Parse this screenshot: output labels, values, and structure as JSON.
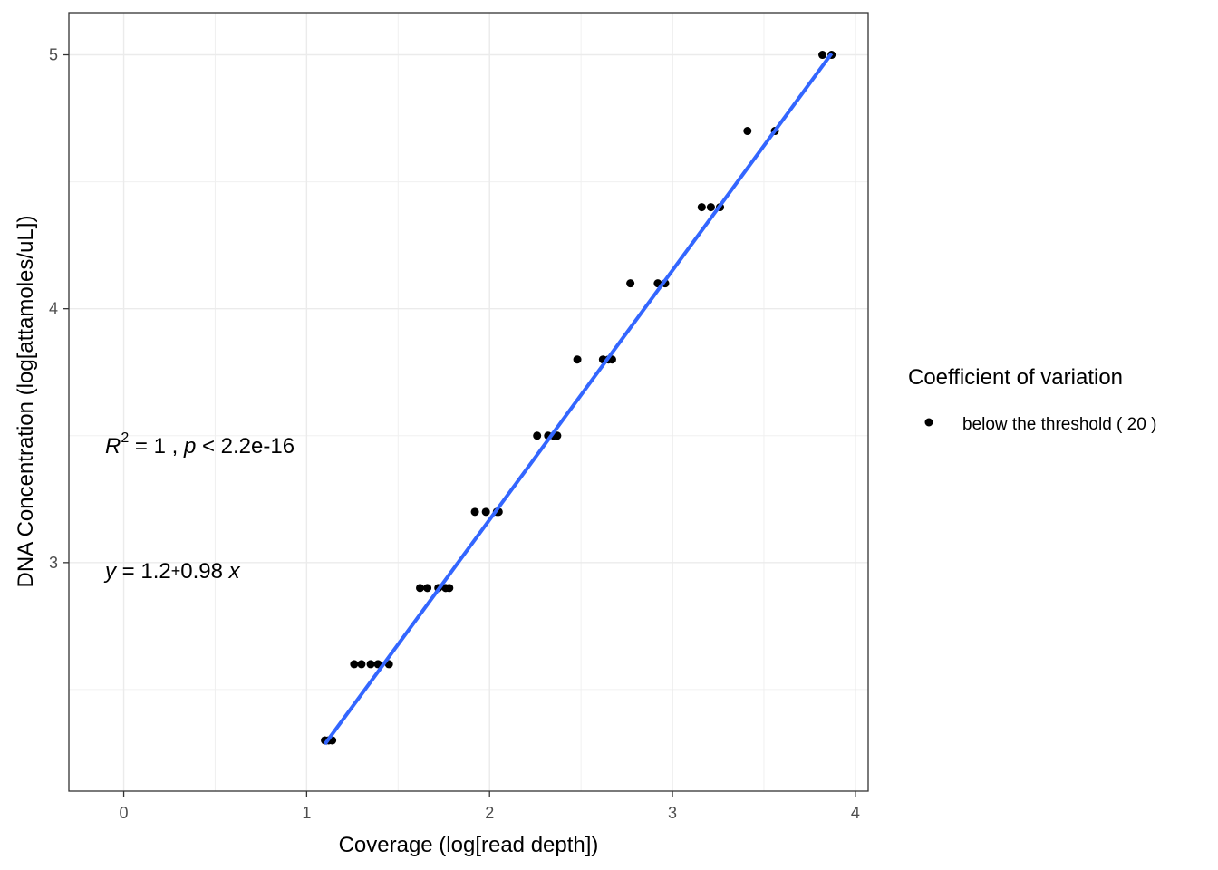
{
  "chart_data": {
    "type": "scatter",
    "xlabel": "Coverage (log[read depth])",
    "ylabel": "DNA Concentration (log[attamoles/uL])",
    "xlim": [
      -0.3,
      4.07
    ],
    "ylim": [
      2.1,
      5.166
    ],
    "x_ticks": [
      0,
      1,
      2,
      3,
      4
    ],
    "y_ticks": [
      3,
      4,
      5
    ],
    "grid": true,
    "legend_position": "right",
    "legend": {
      "title": "Coefficient of variation",
      "entries": [
        {
          "label": "below the threshold ( 20 )",
          "color": "#000000"
        }
      ]
    },
    "annotations": {
      "r2": {
        "var": "R",
        "sup": "2",
        "rest1": " = 1 , ",
        "pvar": "p",
        "rest2": " < 2.2e-16"
      },
      "equation": {
        "var": "y",
        "rest1": " = 1.2",
        "op": "+",
        "rest2": "0.98 ",
        "xvar": "x"
      }
    },
    "fit_line": {
      "intercept": 1.205,
      "slope": 0.982,
      "x_range": [
        1.1,
        3.87
      ],
      "color": "#3366FF"
    },
    "series": [
      {
        "color": "#000000",
        "points": [
          {
            "x": 1.1,
            "y": 2.3
          },
          {
            "x": 1.12,
            "y": 2.3
          },
          {
            "x": 1.14,
            "y": 2.3
          },
          {
            "x": 1.26,
            "y": 2.6
          },
          {
            "x": 1.3,
            "y": 2.6
          },
          {
            "x": 1.35,
            "y": 2.6
          },
          {
            "x": 1.39,
            "y": 2.6
          },
          {
            "x": 1.45,
            "y": 2.6
          },
          {
            "x": 1.62,
            "y": 2.9
          },
          {
            "x": 1.66,
            "y": 2.9
          },
          {
            "x": 1.72,
            "y": 2.9
          },
          {
            "x": 1.76,
            "y": 2.9
          },
          {
            "x": 1.78,
            "y": 2.9
          },
          {
            "x": 1.92,
            "y": 3.2
          },
          {
            "x": 1.98,
            "y": 3.2
          },
          {
            "x": 2.04,
            "y": 3.2
          },
          {
            "x": 2.05,
            "y": 3.2
          },
          {
            "x": 2.26,
            "y": 3.5
          },
          {
            "x": 2.32,
            "y": 3.5
          },
          {
            "x": 2.35,
            "y": 3.5
          },
          {
            "x": 2.37,
            "y": 3.5
          },
          {
            "x": 2.48,
            "y": 3.8
          },
          {
            "x": 2.62,
            "y": 3.8
          },
          {
            "x": 2.65,
            "y": 3.8
          },
          {
            "x": 2.67,
            "y": 3.8
          },
          {
            "x": 2.77,
            "y": 4.1
          },
          {
            "x": 2.92,
            "y": 4.1
          },
          {
            "x": 2.96,
            "y": 4.1
          },
          {
            "x": 3.16,
            "y": 4.4
          },
          {
            "x": 3.21,
            "y": 4.4
          },
          {
            "x": 3.26,
            "y": 4.4
          },
          {
            "x": 3.41,
            "y": 4.7
          },
          {
            "x": 3.56,
            "y": 4.7
          },
          {
            "x": 3.82,
            "y": 5.0
          },
          {
            "x": 3.87,
            "y": 5.0
          }
        ]
      }
    ]
  }
}
